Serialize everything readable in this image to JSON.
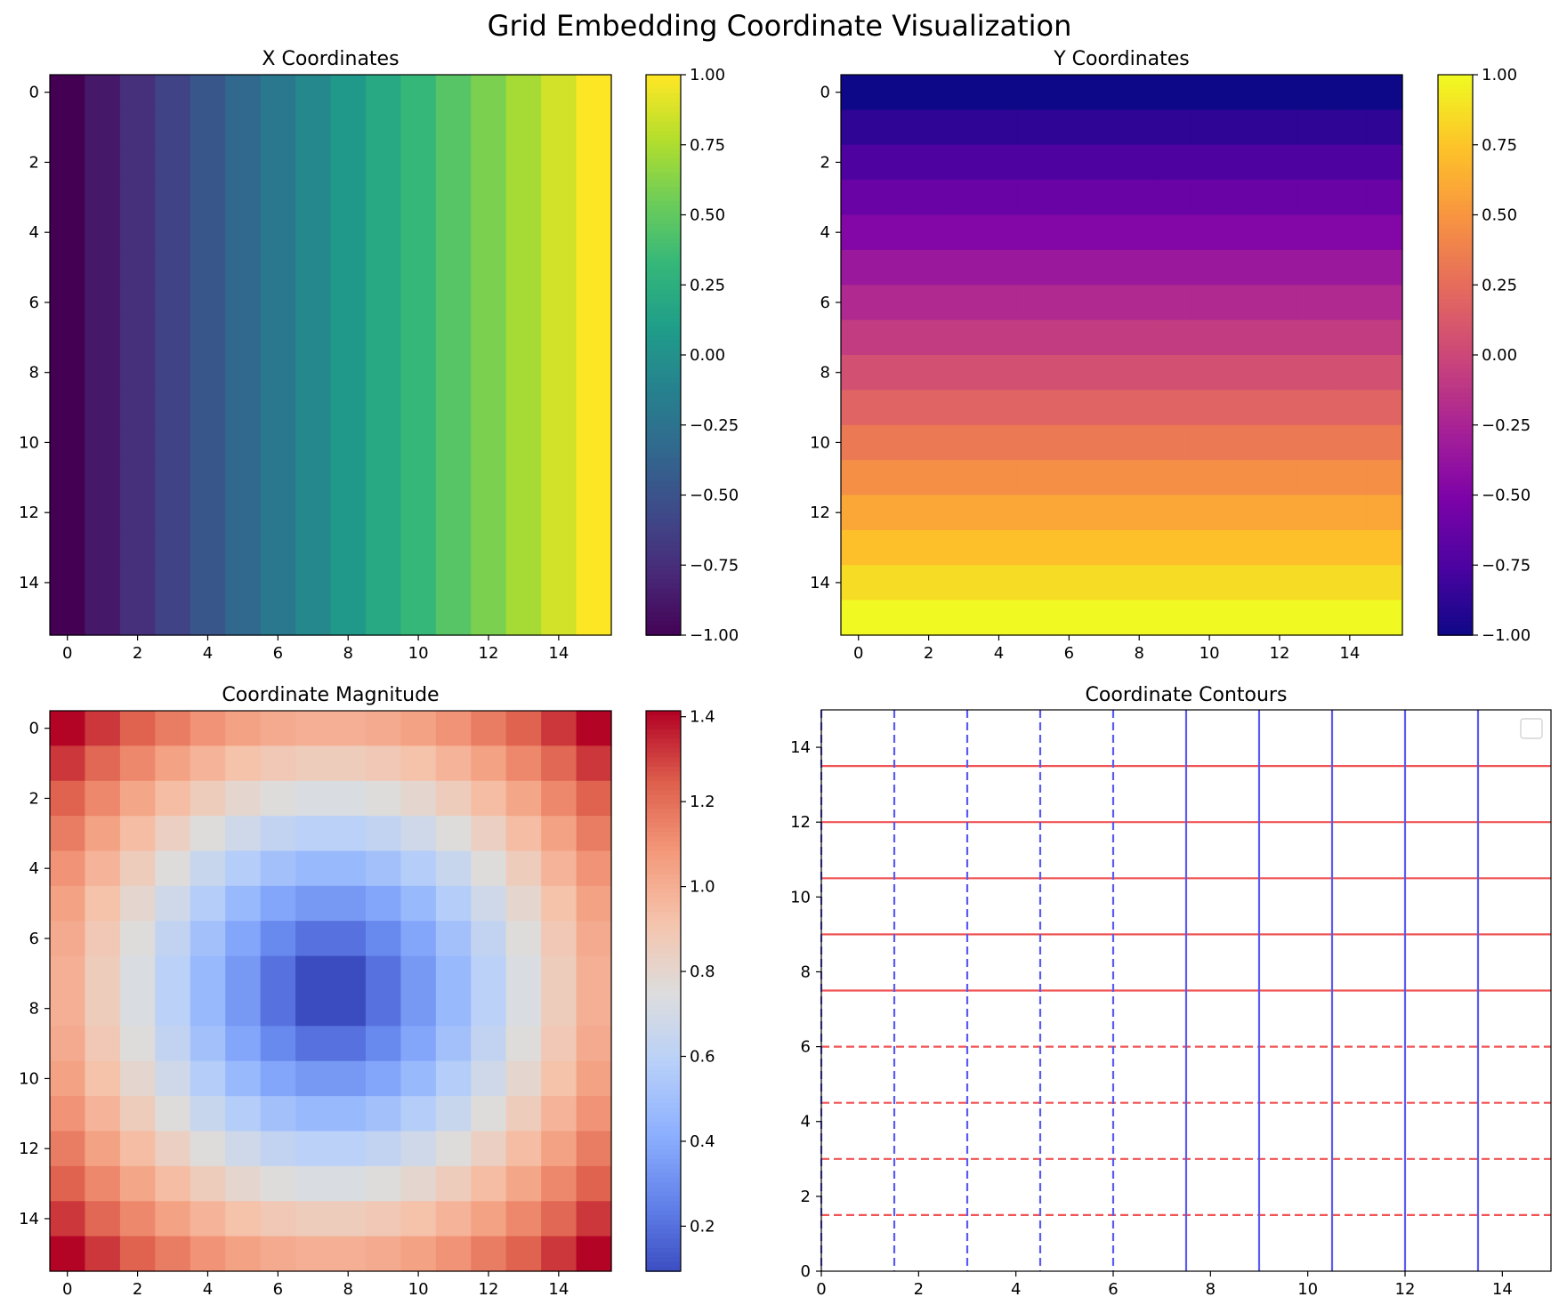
{
  "figure": {
    "title": "Grid Embedding Coordinate Visualization"
  },
  "chart_data": [
    {
      "id": "x-coords",
      "type": "heatmap",
      "title": "X Coordinates",
      "rows": 16,
      "cols": 16,
      "value_rule": "value = -1 + 2*col/15 (varies along columns)",
      "vmin": -1.0,
      "vmax": 1.0,
      "colormap": "viridis",
      "x_ticks": [
        "0",
        "2",
        "4",
        "6",
        "8",
        "10",
        "12",
        "14"
      ],
      "y_ticks": [
        "0",
        "2",
        "4",
        "6",
        "8",
        "10",
        "12",
        "14"
      ],
      "colorbar_ticks": [
        "1.00",
        "0.75",
        "0.50",
        "0.25",
        "0.00",
        "−0.25",
        "−0.50",
        "−0.75",
        "−1.00"
      ]
    },
    {
      "id": "y-coords",
      "type": "heatmap",
      "title": "Y Coordinates",
      "rows": 16,
      "cols": 16,
      "value_rule": "value = -1 + 2*row/15 (varies along rows)",
      "vmin": -1.0,
      "vmax": 1.0,
      "colormap": "plasma",
      "x_ticks": [
        "0",
        "2",
        "4",
        "6",
        "8",
        "10",
        "12",
        "14"
      ],
      "y_ticks": [
        "0",
        "2",
        "4",
        "6",
        "8",
        "10",
        "12",
        "14"
      ],
      "colorbar_ticks": [
        "1.00",
        "0.75",
        "0.50",
        "0.25",
        "0.00",
        "−0.25",
        "−0.50",
        "−0.75",
        "−1.00"
      ]
    },
    {
      "id": "magnitude",
      "type": "heatmap",
      "title": "Coordinate Magnitude",
      "rows": 16,
      "cols": 16,
      "value_rule": "value = sqrt(x^2 + y^2)",
      "vmin": 0.094,
      "vmax": 1.414,
      "colormap": "coolwarm",
      "x_ticks": [
        "0",
        "2",
        "4",
        "6",
        "8",
        "10",
        "12",
        "14"
      ],
      "y_ticks": [
        "0",
        "2",
        "4",
        "6",
        "8",
        "10",
        "12",
        "14"
      ],
      "colorbar_ticks": [
        "1.4",
        "1.2",
        "1.0",
        "0.8",
        "0.6",
        "0.4",
        "0.2"
      ]
    },
    {
      "id": "contours",
      "type": "line",
      "title": "Coordinate Contours",
      "xlim": [
        0,
        15
      ],
      "ylim": [
        0,
        15
      ],
      "x_ticks": [
        "0",
        "2",
        "4",
        "6",
        "8",
        "10",
        "12",
        "14"
      ],
      "y_ticks": [
        "0",
        "2",
        "4",
        "6",
        "8",
        "10",
        "12",
        "14"
      ],
      "vertical_lines": [
        {
          "x": 0.0,
          "style": "dashed"
        },
        {
          "x": 1.5,
          "style": "dashed"
        },
        {
          "x": 3.0,
          "style": "dashed"
        },
        {
          "x": 4.5,
          "style": "dashed"
        },
        {
          "x": 6.0,
          "style": "dashed"
        },
        {
          "x": 7.5,
          "style": "solid"
        },
        {
          "x": 9.0,
          "style": "solid"
        },
        {
          "x": 10.5,
          "style": "solid"
        },
        {
          "x": 12.0,
          "style": "solid"
        },
        {
          "x": 13.5,
          "style": "solid"
        }
      ],
      "horizontal_lines": [
        {
          "y": 1.5,
          "style": "dashed"
        },
        {
          "y": 3.0,
          "style": "dashed"
        },
        {
          "y": 4.5,
          "style": "dashed"
        },
        {
          "y": 6.0,
          "style": "dashed"
        },
        {
          "y": 7.5,
          "style": "solid"
        },
        {
          "y": 9.0,
          "style": "solid"
        },
        {
          "y": 10.5,
          "style": "solid"
        },
        {
          "y": 12.0,
          "style": "solid"
        },
        {
          "y": 13.5,
          "style": "solid"
        }
      ],
      "vertical_color": "#5b5bf0",
      "horizontal_color": "#f05454",
      "legend": "top-right (empty)"
    }
  ]
}
